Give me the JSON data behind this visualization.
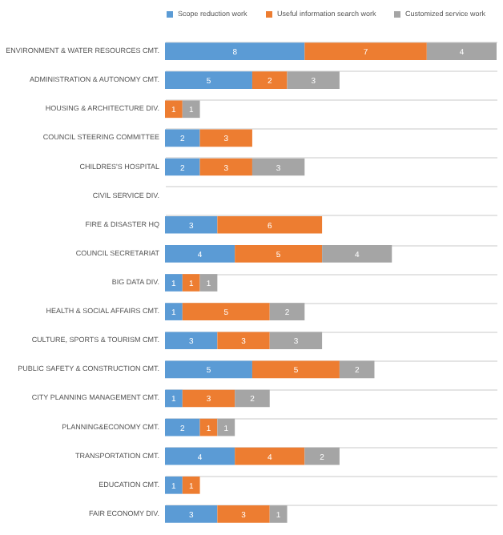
{
  "chart_data": {
    "type": "bar",
    "orientation": "horizontal",
    "stacked": true,
    "legend": "top",
    "grid": "y",
    "categories": [
      "ENVIRONMENT & WATER RESOURCES CMT.",
      "ADMINISTRATION & AUTONOMY CMT.",
      "HOUSING & ARCHITECTURE DIV.",
      "COUNCIL STEERING COMMITTEE",
      "CHILDRES'S HOSPITAL",
      "CIVIL SERVICE DIV.",
      "FIRE & DISASTER HQ",
      "COUNCIL SECRETARIAT",
      "BIG DATA DIV.",
      "HEALTH & SOCIAL AFFAIRS CMT.",
      "CULTURE, SPORTS & TOURISM CMT.",
      "PUBLIC SAFETY & CONSTRUCTION CMT.",
      "CITY PLANNING MANAGEMENT CMT.",
      "PLANNING&ECONOMY CMT.",
      "TRANSPORTATION CMT.",
      "EDUCATION CMT.",
      "FAIR ECONOMY DIV."
    ],
    "series": [
      {
        "name": "Scope reduction work",
        "color": "#5b9bd5",
        "values": [
          8,
          5,
          0,
          2,
          2,
          0,
          3,
          4,
          1,
          1,
          3,
          5,
          1,
          2,
          4,
          1,
          3
        ],
        "value_labels": [
          "8",
          "5",
          null,
          "2",
          "2",
          null,
          "3",
          "4",
          "1",
          "1",
          "3",
          "5",
          "1",
          "2",
          "4",
          "1",
          "3"
        ]
      },
      {
        "name": "Useful information search work",
        "color": "#ed7d31",
        "values": [
          7,
          2,
          1,
          3,
          3,
          0,
          6,
          5,
          1,
          5,
          3,
          5,
          3,
          1,
          4,
          1,
          3
        ],
        "value_labels": [
          "7",
          "2",
          "1",
          "3",
          "3",
          null,
          "6",
          "5",
          "1",
          "5",
          "3",
          "5",
          "3",
          "1",
          "4",
          "1",
          "3"
        ]
      },
      {
        "name": "Customized service work",
        "color": "#a5a5a5",
        "values": [
          4,
          3,
          1,
          0,
          3,
          0,
          0,
          4,
          1,
          2,
          3,
          2,
          2,
          1,
          2,
          0,
          1
        ],
        "value_labels": [
          "4",
          "3",
          "1",
          null,
          "3",
          null,
          null,
          "4",
          "1",
          "2",
          "3",
          "2",
          "2",
          "1",
          "2",
          null,
          "1"
        ]
      }
    ]
  }
}
